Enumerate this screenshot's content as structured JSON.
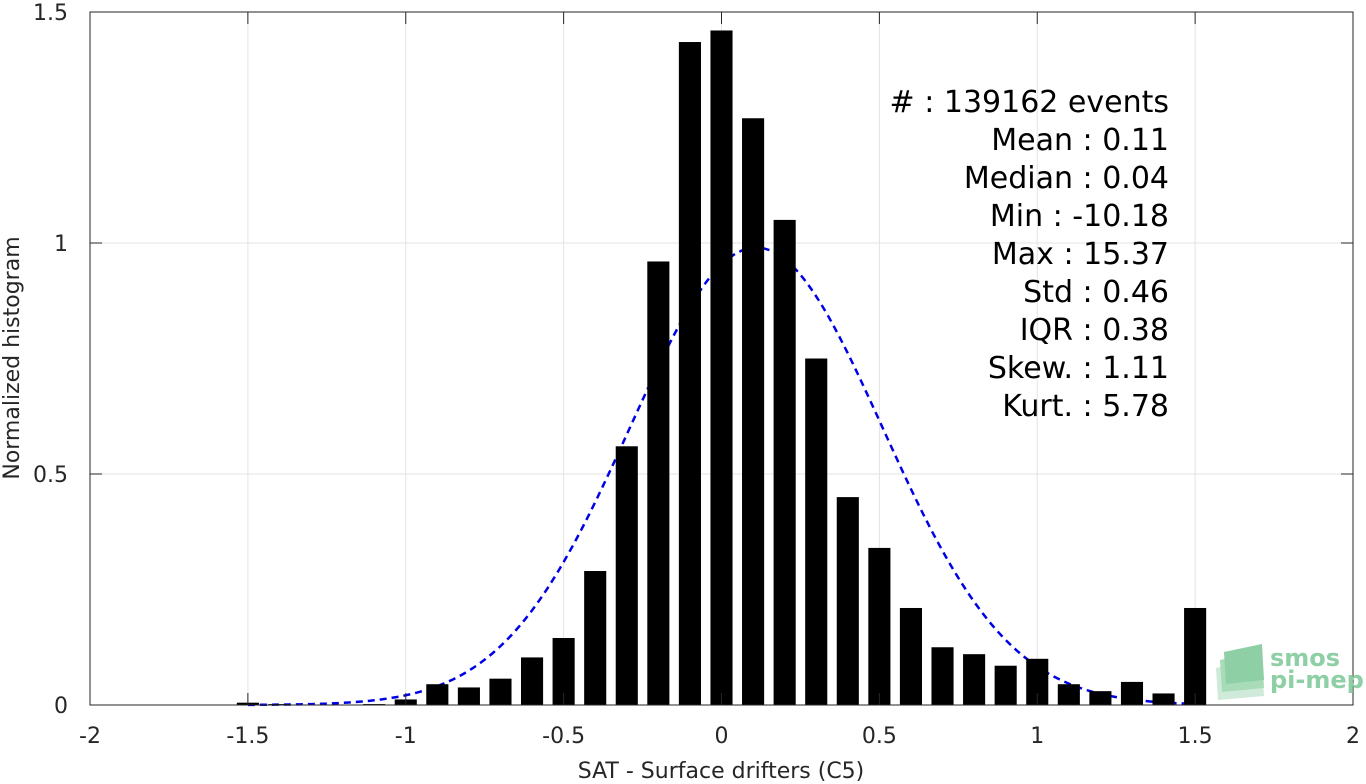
{
  "chart_data": {
    "type": "bar",
    "xlabel": "SAT - Surface drifters (C5)",
    "ylabel": "Normalized histogram",
    "xlim": [
      -2,
      2
    ],
    "ylim": [
      0,
      1.5
    ],
    "x_ticks": [
      "-2",
      "-1.5",
      "-1",
      "-0.5",
      "0",
      "0.5",
      "1",
      "1.5",
      "2"
    ],
    "y_ticks": [
      "0",
      "0.5",
      "1",
      "1.5"
    ],
    "grid": true,
    "bars": {
      "color": "#000000",
      "x": [
        -1.5,
        -1.4,
        -1.3,
        -1.2,
        -1.1,
        -1.0,
        -0.9,
        -0.8,
        -0.7,
        -0.6,
        -0.5,
        -0.4,
        -0.3,
        -0.2,
        -0.1,
        0.0,
        0.1,
        0.2,
        0.3,
        0.4,
        0.5,
        0.6,
        0.7,
        0.8,
        0.9,
        1.0,
        1.1,
        1.2,
        1.3,
        1.4,
        1.5
      ],
      "values": [
        0.005,
        0.002,
        0.001,
        0.001,
        0.002,
        0.012,
        0.045,
        0.038,
        0.057,
        0.103,
        0.145,
        0.29,
        0.56,
        0.96,
        1.435,
        1.46,
        1.27,
        1.05,
        0.75,
        0.45,
        0.34,
        0.21,
        0.125,
        0.11,
        0.085,
        0.1,
        0.045,
        0.03,
        0.05,
        0.025,
        0.21
      ]
    },
    "fit_curve": {
      "style": "dashed",
      "color": "#0000e6",
      "mean": 0.11,
      "std": 0.4,
      "peak": 0.99
    },
    "stats_lines": [
      "#  : 139162 events",
      "Mean : 0.11",
      "Median : 0.04",
      "Min : -10.18",
      "Max : 15.37",
      "Std : 0.46",
      "IQR : 0.38",
      "Skew. : 1.11",
      "Kurt. : 5.78"
    ]
  },
  "logo": {
    "line1": "smos",
    "line2": "pi-mep",
    "color": "#8fcfa5"
  }
}
